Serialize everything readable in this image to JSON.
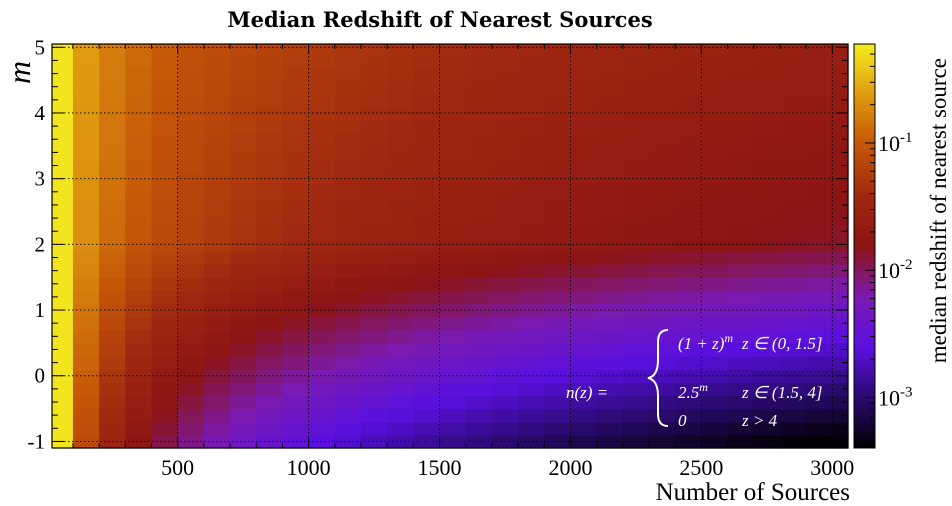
{
  "chart_data": {
    "type": "heatmap",
    "title": "Median Redshift of Nearest Sources",
    "xlabel": "Number of Sources",
    "ylabel": "m",
    "colorbar_label": "median redshift of nearest source",
    "xlim": [
      20,
      3060
    ],
    "ylim": [
      -1.1,
      5.05
    ],
    "x_ticks": [
      500,
      1000,
      1500,
      2000,
      2500,
      3000
    ],
    "y_ticks": [
      -1,
      0,
      1,
      2,
      3,
      4,
      5
    ],
    "x_tick_labels": [
      "500",
      "1000",
      "1500",
      "2000",
      "2500",
      "3000"
    ],
    "y_tick_labels": [
      "-1",
      "0",
      "1",
      "2",
      "3",
      "4",
      "5"
    ],
    "color_scale": "log",
    "colorbar_range": [
      0.0004,
      0.6
    ],
    "colorbar_ticks": [
      {
        "value": 0.1,
        "base": "10",
        "exp": "-1"
      },
      {
        "value": 0.01,
        "base": "10",
        "exp": "-2"
      },
      {
        "value": 0.001,
        "base": "10",
        "exp": "-3"
      }
    ],
    "colormap": [
      "#000000",
      "#2a0a6e",
      "#5a10e0",
      "#7a1ab0",
      "#8c1414",
      "#a02810",
      "#c45508",
      "#e09a10",
      "#f4ec20"
    ],
    "grid": true,
    "x_bin_centers": [
      50,
      150,
      250,
      350,
      450,
      550,
      650,
      750,
      850,
      950,
      1050,
      1150,
      1250,
      1350,
      1450,
      1550,
      1650,
      1750,
      1850,
      1950,
      2050,
      2150,
      2250,
      2350,
      2450,
      2550,
      2650,
      2750,
      2850,
      2950,
      3050
    ],
    "y_bin_centers": [
      -1.0,
      -0.8,
      -0.6,
      -0.4,
      -0.2,
      0.0,
      0.2,
      0.4,
      0.6,
      0.8,
      1.0,
      1.2,
      1.4,
      1.6,
      1.8,
      2.0,
      2.2,
      2.4,
      2.6,
      2.8,
      3.0,
      3.2,
      3.4,
      3.6,
      3.8,
      4.0,
      4.2,
      4.4,
      4.6,
      4.8,
      5.0
    ],
    "value_model": "median z ≈ 0.55·(N/50)^-exponent(m); exponent ~1.05 at m=-1 falling to ~0.75 at m=5, with extra suppression below m≈2",
    "annotation": {
      "lhs": "n(z) =",
      "cases": [
        {
          "expr": "(1 + z)",
          "sup": "m",
          "cond": "z ∈ (0, 1.5]"
        },
        {
          "expr": "2.5",
          "sup": "m",
          "cond": "z ∈ (1.5, 4]"
        },
        {
          "expr": "0",
          "sup": "",
          "cond": "z > 4"
        }
      ]
    }
  }
}
